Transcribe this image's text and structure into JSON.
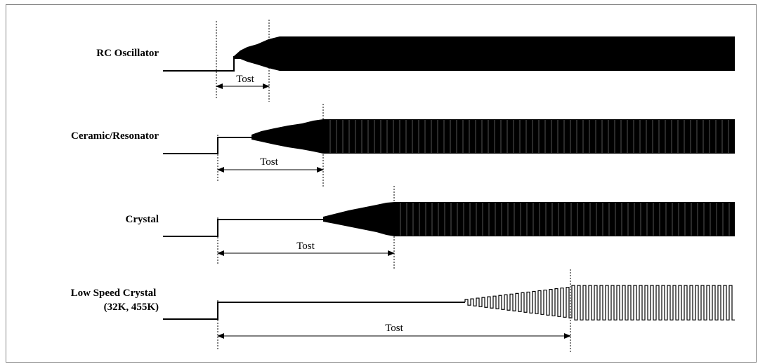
{
  "colors": {
    "line": "#000000",
    "background": "#ffffff",
    "border": "#888888"
  },
  "rows": [
    {
      "label_lines": [
        "RC Oscillator"
      ],
      "interval_label": "Tost"
    },
    {
      "label_lines": [
        "Ceramic/Resonator"
      ],
      "interval_label": "Tost"
    },
    {
      "label_lines": [
        "Crystal"
      ],
      "interval_label": "Tost"
    },
    {
      "label_lines": [
        "Low Speed Crystal",
        "(32K, 455K)"
      ],
      "interval_label": "Tost"
    }
  ]
}
